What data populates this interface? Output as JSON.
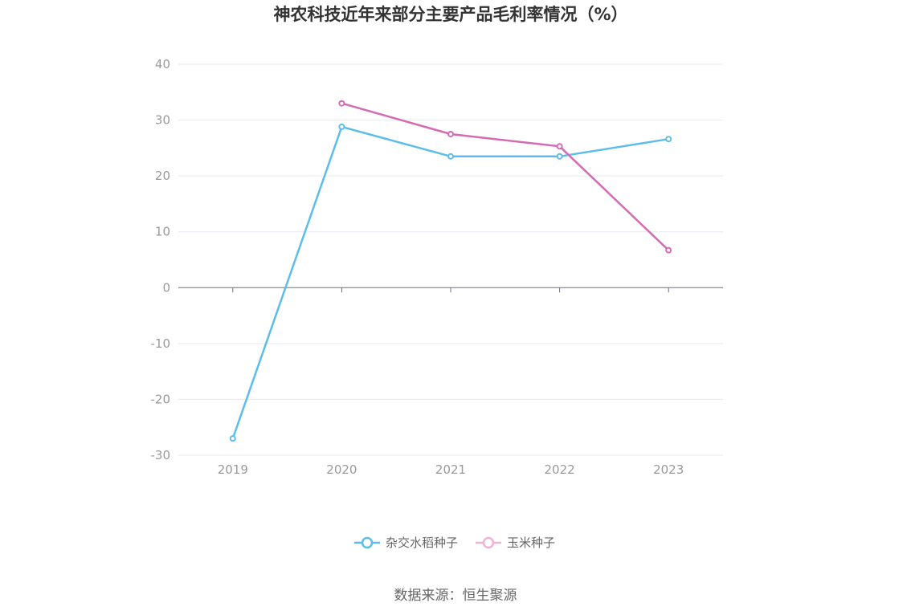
{
  "chart_data": {
    "type": "line",
    "title": "神农科技近年来部分主要产品毛利率情况（%）",
    "categories": [
      "2019",
      "2020",
      "2021",
      "2022",
      "2023"
    ],
    "ylim": [
      -30,
      40
    ],
    "yticks": [
      40,
      30,
      20,
      10,
      0,
      -10,
      -20,
      -30
    ],
    "grid": true,
    "legend_position": "bottom",
    "series": [
      {
        "name": "杂交水稻种子",
        "color": "#5bbdeb",
        "values": [
          -27.0,
          28.8,
          23.5,
          23.5,
          26.6
        ]
      },
      {
        "name": "玉米种子",
        "color": "#d66bb5",
        "values": [
          null,
          33.0,
          27.5,
          25.3,
          6.7
        ]
      }
    ]
  },
  "footer": {
    "source": "数据来源：恒生聚源"
  }
}
